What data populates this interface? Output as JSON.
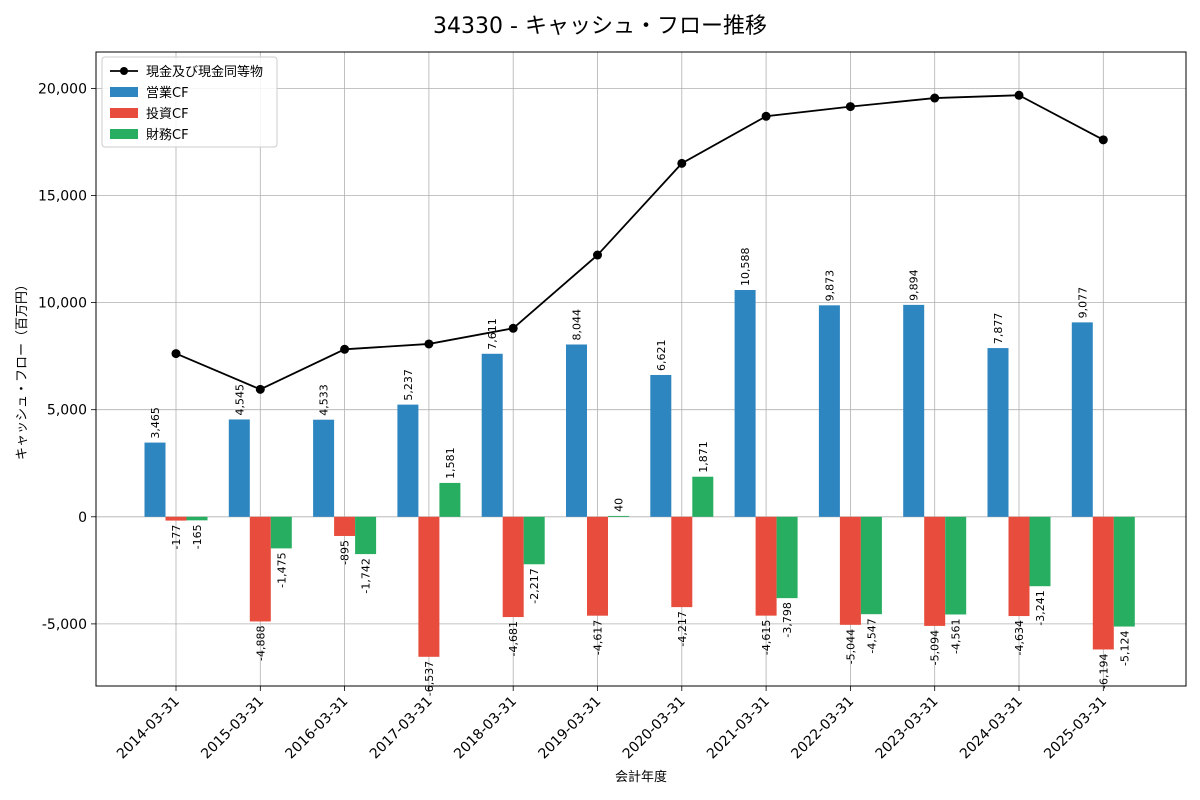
{
  "chart_data": {
    "type": "bar",
    "title": "34330 - キャッシュ・フロー推移",
    "xlabel": "会計年度",
    "ylabel": "キャッシュ・フロー（百万円）",
    "ylim": [
      -7900,
      21700
    ],
    "yticks": [
      -5000,
      0,
      5000,
      10000,
      15000,
      20000
    ],
    "ytick_labels": [
      "-5,000",
      "0",
      "5,000",
      "10,000",
      "15,000",
      "20,000"
    ],
    "grid": true,
    "legend_position": "top-left",
    "categories": [
      "2014-03-31",
      "2015-03-31",
      "2016-03-31",
      "2017-03-31",
      "2018-03-31",
      "2019-03-31",
      "2020-03-31",
      "2021-03-31",
      "2022-03-31",
      "2023-03-31",
      "2024-03-31",
      "2025-03-31"
    ],
    "series": [
      {
        "name": "営業CF",
        "kind": "bar",
        "color": "#2e86c1",
        "values": [
          3465,
          4545,
          4533,
          5237,
          7611,
          8044,
          6621,
          10588,
          9873,
          9894,
          7877,
          9077
        ],
        "labels": [
          "3,465",
          "4,545",
          "4,533",
          "5,237",
          "7,611",
          "8,044",
          "6,621",
          "10,588",
          "9,873",
          "9,894",
          "7,877",
          "9,077"
        ]
      },
      {
        "name": "投資CF",
        "kind": "bar",
        "color": "#e74c3c",
        "values": [
          -177,
          -4888,
          -895,
          -6537,
          -4681,
          -4617,
          -4217,
          -4615,
          -5044,
          -5094,
          -4634,
          -6194
        ],
        "labels": [
          "-177",
          "-4,888",
          "-895",
          "-6,537",
          "-4,681",
          "-4,617",
          "-4,217",
          "-4,615",
          "-5,044",
          "-5,094",
          "-4,634",
          "-6,194"
        ]
      },
      {
        "name": "財務CF",
        "kind": "bar",
        "color": "#27ae60",
        "values": [
          -165,
          -1475,
          -1742,
          1581,
          -2217,
          40,
          1871,
          -3798,
          -4547,
          -4561,
          -3241,
          -5124
        ],
        "labels": [
          "-165",
          "-1,475",
          "-1,742",
          "1,581",
          "-2,217",
          "40",
          "1,871",
          "-3,798",
          "-4,547",
          "-4,561",
          "-3,241",
          "-5,124"
        ]
      },
      {
        "name": "現金及び現金同等物",
        "kind": "line",
        "color": "#000000",
        "values": [
          7620,
          5950,
          7820,
          8070,
          8800,
          12220,
          16500,
          18700,
          19150,
          19550,
          19680,
          17600
        ]
      }
    ]
  }
}
